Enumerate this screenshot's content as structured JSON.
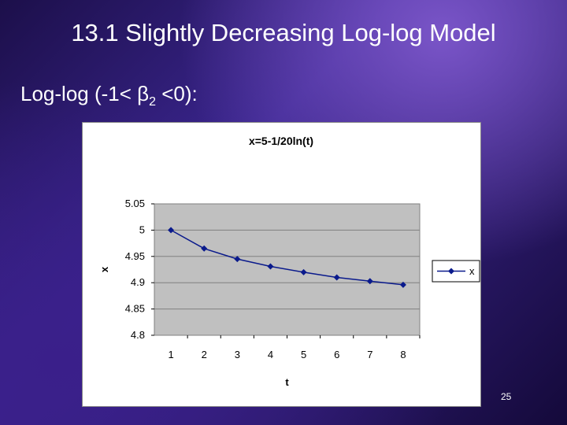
{
  "slide": {
    "title": "13.1 Slightly Decreasing Log-log Model",
    "bullet_main": "Log-log (-1< β",
    "bullet_sub": "2",
    "bullet_tail": " <0):",
    "page_number": "25"
  },
  "colors": {
    "plot_bg": "#c0c0c0",
    "series": "#0a1a8c",
    "grid": "#808080"
  },
  "chart_data": {
    "type": "line",
    "title": "x=5-1/20ln(t)",
    "xlabel": "t",
    "ylabel": "x",
    "categories": [
      "1",
      "2",
      "3",
      "4",
      "5",
      "6",
      "7",
      "8"
    ],
    "series": [
      {
        "name": "x",
        "values": [
          5.0,
          4.965,
          4.945,
          4.931,
          4.92,
          4.91,
          4.903,
          4.896
        ]
      }
    ],
    "ylim": [
      4.8,
      5.05
    ],
    "yticks": [
      "4.8",
      "4.85",
      "4.9",
      "4.95",
      "5",
      "5.05"
    ],
    "grid": true,
    "legend": "right"
  }
}
